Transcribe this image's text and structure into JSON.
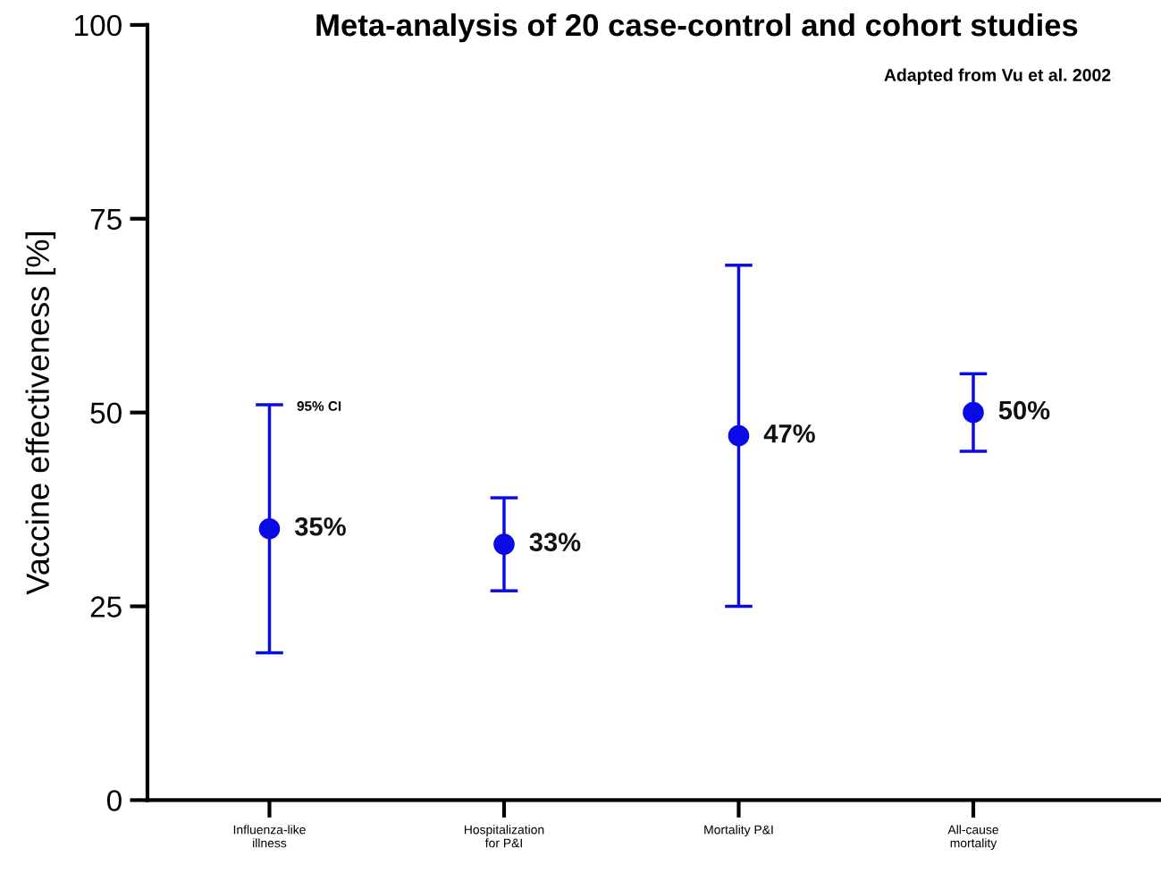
{
  "chart_data": {
    "type": "scatter",
    "title": "Meta-analysis of 20 case-control and cohort studies",
    "ylabel": "Vaccine effectiveness [%]",
    "categories": [
      "Influenza-like\nillness",
      "Hospitalization\nfor P&I",
      "Mortality P&I",
      "All-cause\nmortality"
    ],
    "series": [
      {
        "color": "#0a0ae6",
        "values": [
          35,
          33,
          47,
          50
        ],
        "errors": [
          [
            19,
            51
          ],
          [
            27,
            39
          ],
          [
            25,
            69
          ],
          [
            45,
            55
          ]
        ],
        "value_labels": [
          "35%",
          "33%",
          "47%",
          "50%"
        ]
      }
    ],
    "ylim": [
      0,
      100
    ],
    "yticks": [
      0,
      25,
      50,
      75,
      100
    ],
    "grid": false,
    "legend": false,
    "marker": "circle",
    "annotations": [
      "Adapted from Vu et al. 2002",
      {
        "text": "95% CI",
        "x": "Influenza-like\nillness",
        "y": 51
      }
    ]
  }
}
